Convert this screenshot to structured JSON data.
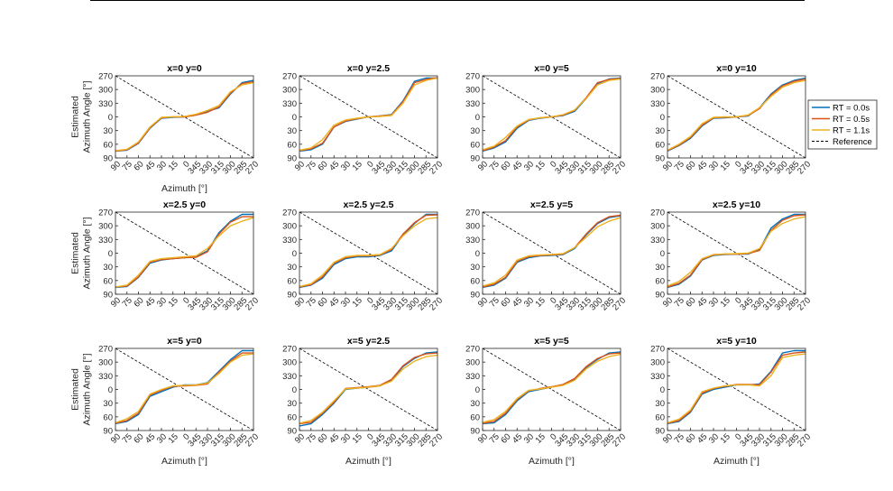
{
  "chart_data": {
    "type": "line",
    "layout": {
      "rows": 3,
      "cols": 4
    },
    "xlabel": "Azimuth [°]",
    "ylabel_line1": "Estimated",
    "ylabel_line2": "Azimuth Angle [°]",
    "x_tick_labels": [
      "90",
      "75",
      "60",
      "45",
      "30",
      "15",
      "0",
      "345",
      "330",
      "315",
      "300",
      "285",
      "270"
    ],
    "y_tick_labels": [
      "270",
      "300",
      "330",
      "0",
      "30",
      "60",
      "90"
    ],
    "x_axis_unwrapped_range": [
      90,
      -90
    ],
    "y_axis_unwrapped_range": [
      -90,
      90
    ],
    "grid": false,
    "legend": {
      "location": "right of top-right panel",
      "entries": [
        {
          "label": "RT = 0.0s",
          "color": "#0072BD",
          "style": "solid"
        },
        {
          "label": "RT = 0.5s",
          "color": "#D95319",
          "style": "solid"
        },
        {
          "label": "RT = 1.1s",
          "color": "#EDB120",
          "style": "solid"
        },
        {
          "label": "Reference",
          "color": "#000000",
          "style": "dashed"
        }
      ]
    },
    "panels": [
      {
        "title": "x=0 y=0",
        "show_ylabel": true,
        "show_xlabel": true,
        "series": {
          "x": [
            90,
            75,
            60,
            45,
            30,
            15,
            0,
            -15,
            -30,
            -45,
            -60,
            -75,
            -90
          ],
          "rt00": [
            75,
            73,
            58,
            25,
            3,
            1,
            0,
            -5,
            -12,
            -20,
            -50,
            -75,
            -80
          ],
          "rt05": [
            75,
            72,
            57,
            24,
            2,
            0,
            0,
            -4,
            -10,
            -22,
            -52,
            -73,
            -77
          ],
          "rt11": [
            74,
            71,
            55,
            22,
            1,
            0,
            -1,
            -6,
            -14,
            -25,
            -55,
            -70,
            -75
          ]
        }
      },
      {
        "title": "x=0 y=2.5",
        "show_ylabel": false,
        "show_xlabel": false,
        "series": {
          "x": [
            90,
            75,
            60,
            45,
            30,
            15,
            0,
            -15,
            -30,
            -45,
            -60,
            -75,
            -90
          ],
          "rt00": [
            75,
            72,
            60,
            22,
            10,
            5,
            0,
            -2,
            -5,
            -35,
            -78,
            -85,
            -85
          ],
          "rt05": [
            74,
            70,
            58,
            22,
            9,
            4,
            0,
            -2,
            -4,
            -33,
            -75,
            -82,
            -86
          ],
          "rt11": [
            73,
            68,
            50,
            18,
            7,
            3,
            0,
            -1,
            -3,
            -30,
            -70,
            -80,
            -85
          ]
        }
      },
      {
        "title": "x=0 y=5",
        "show_ylabel": false,
        "show_xlabel": false,
        "series": {
          "x": [
            90,
            75,
            60,
            45,
            30,
            15,
            0,
            -15,
            -30,
            -45,
            -60,
            -75,
            -90
          ],
          "rt00": [
            75,
            68,
            55,
            25,
            8,
            3,
            0,
            -3,
            -12,
            -40,
            -73,
            -83,
            -85
          ],
          "rt05": [
            74,
            66,
            52,
            22,
            7,
            2,
            0,
            -4,
            -14,
            -42,
            -75,
            -82,
            -84
          ],
          "rt11": [
            72,
            64,
            45,
            20,
            6,
            2,
            0,
            -5,
            -15,
            -40,
            -70,
            -80,
            -83
          ]
        }
      },
      {
        "title": "x=0 y=10",
        "show_ylabel": false,
        "show_xlabel": false,
        "series": {
          "x": [
            90,
            75,
            60,
            45,
            30,
            15,
            0,
            -15,
            -30,
            -45,
            -60,
            -75,
            -90
          ],
          "rt00": [
            75,
            63,
            47,
            20,
            3,
            2,
            0,
            -2,
            -20,
            -50,
            -70,
            -80,
            -85
          ],
          "rt05": [
            74,
            62,
            45,
            18,
            2,
            1,
            0,
            -3,
            -18,
            -48,
            -68,
            -78,
            -83
          ],
          "rt11": [
            73,
            60,
            43,
            15,
            1,
            0,
            0,
            -4,
            -20,
            -45,
            -65,
            -75,
            -80
          ]
        }
      },
      {
        "title": "x=2.5 y=0",
        "show_ylabel": true,
        "show_xlabel": false,
        "series": {
          "x": [
            90,
            75,
            60,
            45,
            30,
            15,
            0,
            -15,
            -30,
            -45,
            -60,
            -75,
            -90
          ],
          "rt00": [
            75,
            73,
            53,
            22,
            15,
            12,
            10,
            8,
            -5,
            -45,
            -70,
            -85,
            -85
          ],
          "rt05": [
            74,
            72,
            52,
            20,
            14,
            12,
            10,
            9,
            -3,
            -42,
            -68,
            -80,
            -80
          ],
          "rt11": [
            74,
            70,
            48,
            18,
            12,
            10,
            8,
            6,
            -10,
            -38,
            -60,
            -70,
            -78
          ]
        }
      },
      {
        "title": "x=2.5 y=2.5",
        "show_ylabel": false,
        "show_xlabel": false,
        "series": {
          "x": [
            90,
            75,
            60,
            45,
            30,
            15,
            0,
            -15,
            -30,
            -45,
            -60,
            -75,
            -90
          ],
          "rt00": [
            75,
            70,
            55,
            25,
            12,
            8,
            8,
            5,
            -5,
            -40,
            -65,
            -85,
            -85
          ],
          "rt05": [
            74,
            69,
            52,
            22,
            10,
            6,
            6,
            4,
            -8,
            -42,
            -67,
            -83,
            -84
          ],
          "rt11": [
            73,
            67,
            48,
            20,
            8,
            5,
            5,
            3,
            -10,
            -38,
            -60,
            -75,
            -78
          ]
        }
      },
      {
        "title": "x=2.5 y=5",
        "show_ylabel": false,
        "show_xlabel": false,
        "series": {
          "x": [
            90,
            75,
            60,
            45,
            30,
            15,
            0,
            -15,
            -30,
            -45,
            -60,
            -75,
            -90
          ],
          "rt00": [
            75,
            70,
            55,
            20,
            10,
            6,
            5,
            3,
            -10,
            -40,
            -65,
            -78,
            -82
          ],
          "rt05": [
            74,
            68,
            53,
            18,
            8,
            5,
            4,
            2,
            -12,
            -42,
            -67,
            -80,
            -83
          ],
          "rt11": [
            72,
            65,
            48,
            15,
            6,
            4,
            3,
            1,
            -12,
            -35,
            -58,
            -70,
            -78
          ]
        }
      },
      {
        "title": "x=2.5 y=10",
        "show_ylabel": false,
        "show_xlabel": false,
        "series": {
          "x": [
            90,
            75,
            60,
            45,
            30,
            15,
            0,
            -15,
            -30,
            -45,
            -60,
            -75,
            -90
          ],
          "rt00": [
            75,
            68,
            50,
            15,
            5,
            3,
            2,
            2,
            -8,
            -55,
            -75,
            -85,
            -85
          ],
          "rt05": [
            74,
            66,
            48,
            14,
            4,
            2,
            2,
            1,
            -6,
            -50,
            -72,
            -82,
            -84
          ],
          "rt11": [
            72,
            62,
            42,
            12,
            3,
            2,
            1,
            0,
            -10,
            -48,
            -65,
            -75,
            -80
          ]
        }
      },
      {
        "title": "x=5 y=0",
        "show_ylabel": true,
        "show_xlabel": true,
        "series": {
          "x": [
            90,
            75,
            60,
            45,
            30,
            15,
            0,
            -15,
            -30,
            -45,
            -60,
            -75,
            -90
          ],
          "rt00": [
            75,
            70,
            55,
            15,
            5,
            -5,
            -10,
            -10,
            -15,
            -40,
            -65,
            -85,
            -85
          ],
          "rt05": [
            74,
            68,
            52,
            12,
            2,
            -7,
            -8,
            -9,
            -12,
            -38,
            -62,
            -80,
            -80
          ],
          "rt11": [
            73,
            64,
            48,
            10,
            0,
            -8,
            -9,
            -10,
            -14,
            -35,
            -60,
            -75,
            -78
          ]
        }
      },
      {
        "title": "x=5 y=2.5",
        "show_ylabel": false,
        "show_xlabel": true,
        "series": {
          "x": [
            90,
            75,
            60,
            45,
            30,
            15,
            0,
            -15,
            -30,
            -45,
            -60,
            -75,
            -90
          ],
          "rt00": [
            80,
            75,
            55,
            30,
            0,
            -3,
            -5,
            -8,
            -20,
            -50,
            -68,
            -80,
            -82
          ],
          "rt05": [
            75,
            72,
            52,
            28,
            -2,
            -4,
            -6,
            -9,
            -22,
            -52,
            -70,
            -78,
            -80
          ],
          "rt11": [
            74,
            68,
            50,
            25,
            -1,
            -3,
            -5,
            -8,
            -18,
            -45,
            -62,
            -72,
            -75
          ]
        }
      },
      {
        "title": "x=5 y=5",
        "show_ylabel": false,
        "show_xlabel": true,
        "series": {
          "x": [
            90,
            75,
            60,
            45,
            30,
            15,
            0,
            -15,
            -30,
            -45,
            -60,
            -75,
            -90
          ],
          "rt00": [
            75,
            73,
            55,
            25,
            5,
            0,
            -5,
            -10,
            -22,
            -48,
            -66,
            -80,
            -82
          ],
          "rt05": [
            74,
            70,
            52,
            22,
            3,
            -2,
            -6,
            -11,
            -24,
            -50,
            -68,
            -78,
            -80
          ],
          "rt11": [
            72,
            66,
            48,
            20,
            2,
            -1,
            -5,
            -9,
            -20,
            -45,
            -62,
            -72,
            -77
          ]
        }
      },
      {
        "title": "x=5 y=10",
        "show_ylabel": false,
        "show_xlabel": true,
        "series": {
          "x": [
            90,
            75,
            60,
            45,
            30,
            15,
            0,
            -15,
            -30,
            -45,
            -60,
            -75,
            -90
          ],
          "rt00": [
            75,
            70,
            50,
            10,
            0,
            -5,
            -10,
            -10,
            -12,
            -40,
            -80,
            -85,
            -85
          ],
          "rt05": [
            74,
            68,
            48,
            8,
            -2,
            -7,
            -11,
            -11,
            -10,
            -38,
            -75,
            -80,
            -82
          ],
          "rt11": [
            73,
            65,
            45,
            5,
            -3,
            -8,
            -10,
            -10,
            -8,
            -30,
            -70,
            -75,
            -78
          ]
        }
      }
    ]
  }
}
